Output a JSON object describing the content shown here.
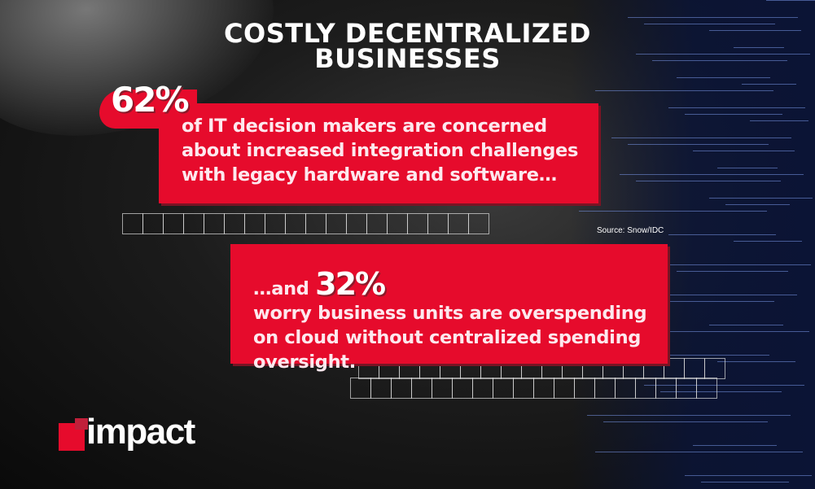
{
  "title": {
    "line1": "COSTLY DECENTRALIZED",
    "line2": "BUSINESSES"
  },
  "stat1": {
    "percent": "62%",
    "lines": [
      "of IT decision makers are concerned",
      "about increased integration challenges",
      "with legacy hardware and software…"
    ]
  },
  "stat2": {
    "prefix": "…and",
    "percent": "32%",
    "lines": [
      "worry business units are overspending",
      "on cloud without centralized spending",
      "oversight."
    ]
  },
  "source": "Source: Snow/IDC",
  "logo": {
    "text": "impact"
  },
  "colors": {
    "accent": "#e60b2c",
    "background": "#1c1c1c",
    "text": "#ffffff"
  }
}
